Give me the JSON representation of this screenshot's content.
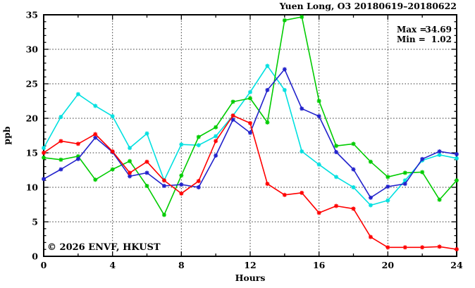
{
  "page": {
    "background": "#ffffff"
  },
  "title": "Yuen Long, O3 20180619–20180622",
  "annotations": {
    "max_label": "Max =",
    "max_value": "34.69",
    "min_label": "Min =",
    "min_value": "1.02"
  },
  "watermark": "© 2026 ENVF, HKUST",
  "chart_data": {
    "type": "line",
    "title": "Yuen Long, O3 20180619–20180622",
    "xlabel": "Hours",
    "ylabel": "ppb",
    "xlim": [
      0,
      24
    ],
    "ylim": [
      0,
      35
    ],
    "xticks": [
      0,
      4,
      8,
      12,
      16,
      20,
      24
    ],
    "yticks": [
      0,
      5,
      10,
      15,
      20,
      25,
      30,
      35
    ],
    "x_minor_step": 2,
    "y_minor_step": 1,
    "grid": true,
    "legend_position": "none",
    "marker": "asterisk",
    "x": [
      0,
      1,
      2,
      3,
      4,
      5,
      6,
      7,
      8,
      9,
      10,
      11,
      12,
      13,
      14,
      15,
      16,
      17,
      18,
      19,
      20,
      21,
      22,
      23,
      24
    ],
    "series": [
      {
        "name": "cyan-series",
        "color": "#00e0e0",
        "values": [
          15.7,
          20.2,
          23.5,
          21.8,
          20.3,
          15.7,
          17.8,
          11.0,
          16.2,
          16.1,
          17.4,
          20.4,
          23.8,
          27.6,
          24.1,
          15.2,
          13.3,
          11.5,
          10.0,
          7.4,
          8.1,
          11.0,
          13.9,
          14.7,
          14.2
        ]
      },
      {
        "name": "green-series",
        "color": "#00cc00",
        "values": [
          14.3,
          14.0,
          14.5,
          11.1,
          12.6,
          13.8,
          10.2,
          6.0,
          11.7,
          17.3,
          18.7,
          22.4,
          22.9,
          19.4,
          34.2,
          34.69,
          22.5,
          16.0,
          16.3,
          13.7,
          11.5,
          12.1,
          12.2,
          8.2,
          11.0
        ]
      },
      {
        "name": "blue-series",
        "color": "#2222cc",
        "values": [
          11.2,
          12.6,
          14.1,
          17.2,
          15.1,
          11.6,
          12.1,
          10.2,
          10.4,
          10.0,
          14.6,
          19.8,
          17.9,
          24.1,
          27.1,
          21.4,
          20.3,
          15.1,
          12.6,
          8.5,
          10.1,
          10.5,
          14.1,
          15.2,
          14.8
        ]
      },
      {
        "name": "red-series",
        "color": "#ff0000",
        "values": [
          15.0,
          16.7,
          16.3,
          17.7,
          15.2,
          12.1,
          13.7,
          11.0,
          9.1,
          10.9,
          16.7,
          20.4,
          19.3,
          10.5,
          8.9,
          9.2,
          6.3,
          7.3,
          6.9,
          2.8,
          1.3,
          1.3,
          1.3,
          1.4,
          1.02
        ]
      }
    ],
    "stats": {
      "max": 34.69,
      "min": 1.02
    }
  }
}
